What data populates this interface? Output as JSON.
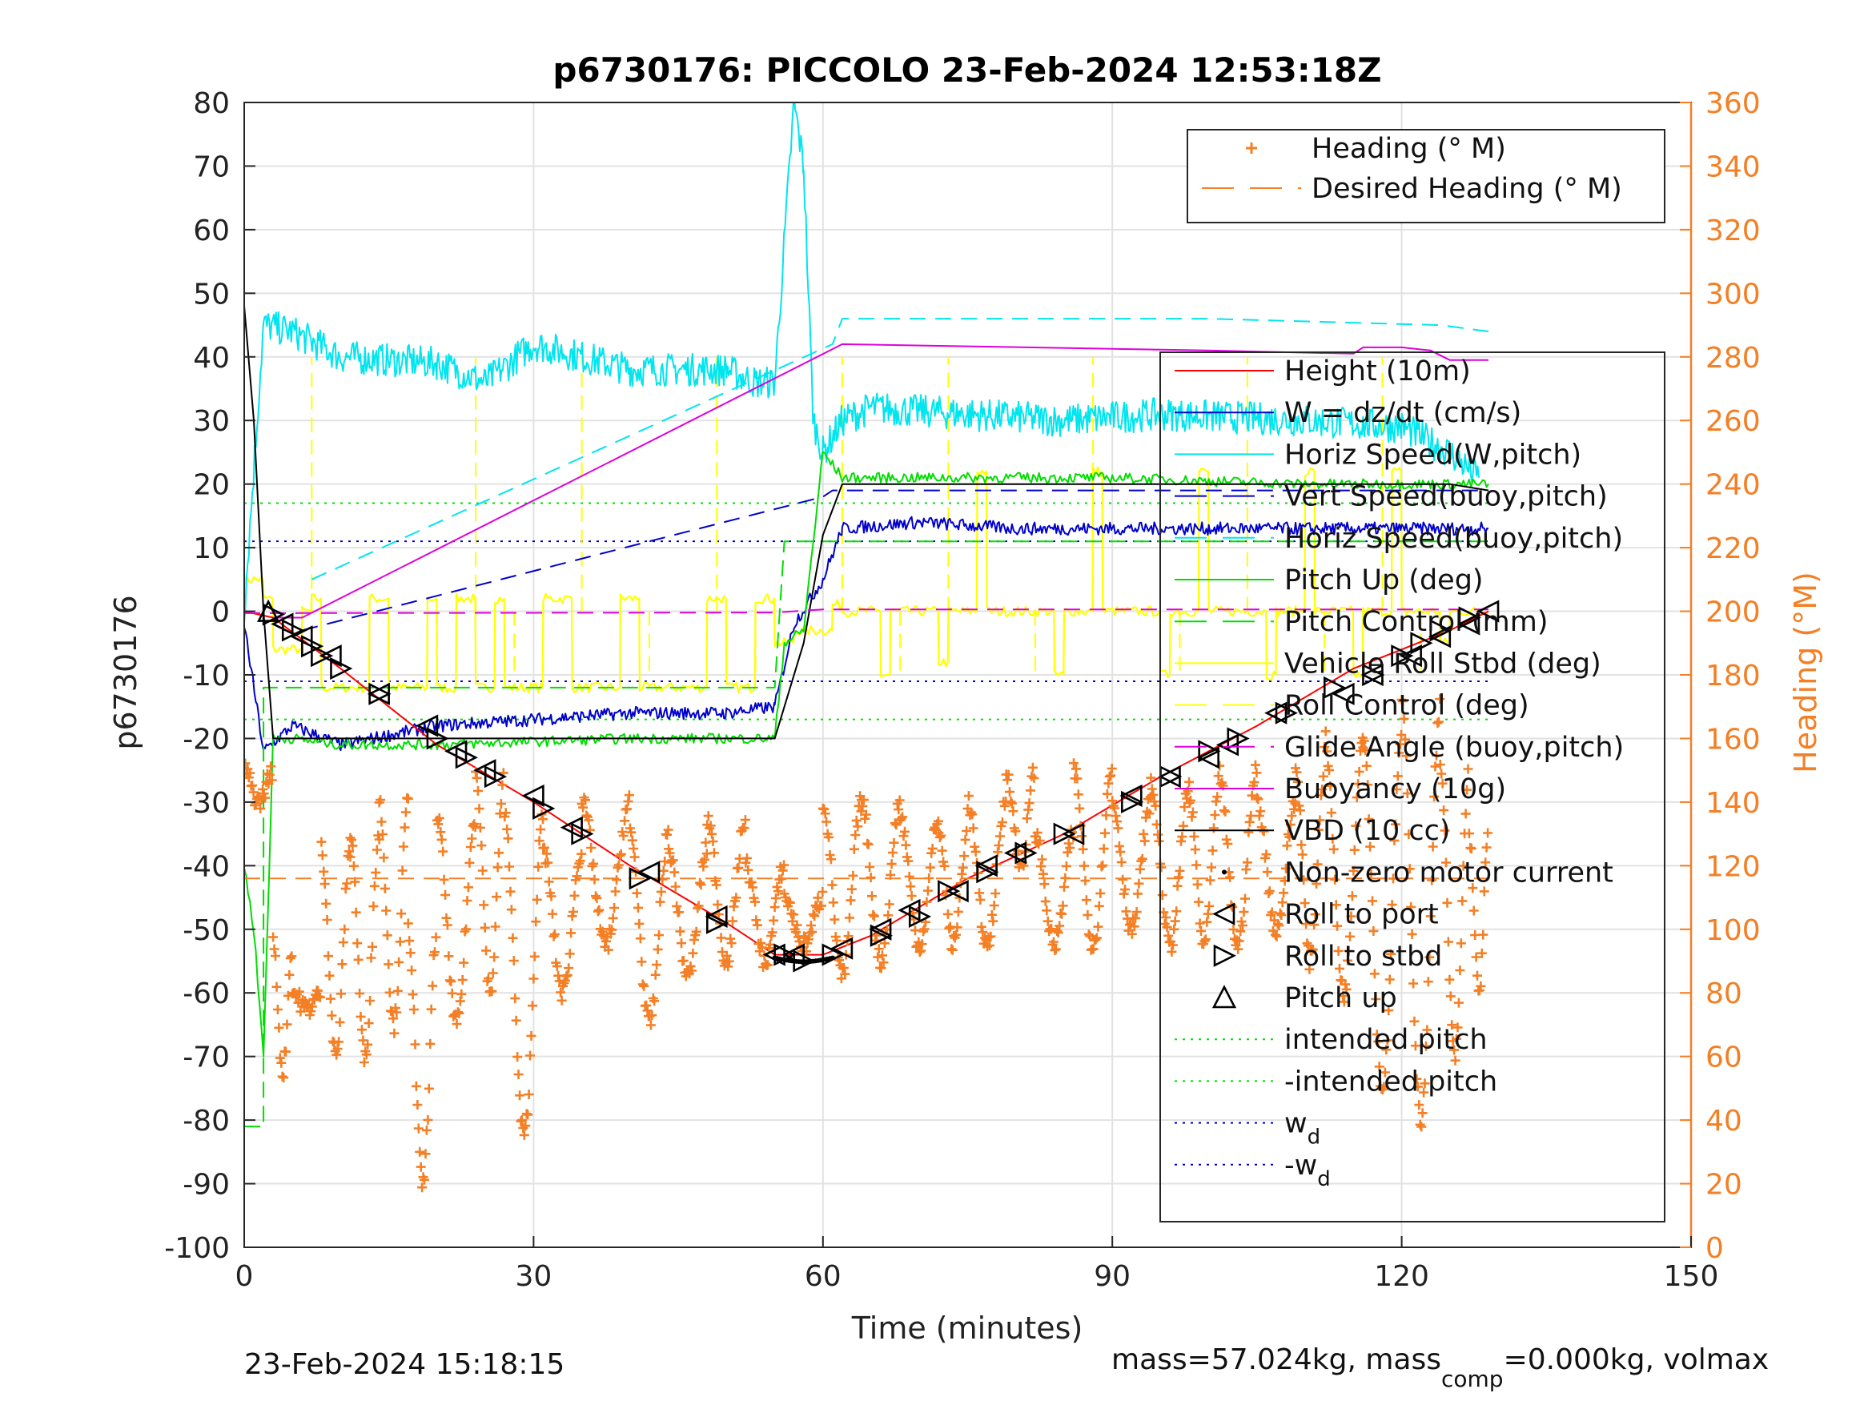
{
  "chart_data": {
    "type": "line",
    "title": "p6730176: PICCOLO 23-Feb-2024 12:53:18Z",
    "xlabel": "Time (minutes)",
    "ylabel": "p6730176",
    "ylabel_right": "Heading (°M)",
    "xlim": [
      0,
      150
    ],
    "ylim": [
      -100,
      80
    ],
    "ylim_right": [
      0,
      360
    ],
    "x_ticks": [
      0,
      30,
      60,
      90,
      120,
      150
    ],
    "y_ticks": [
      -100,
      -90,
      -80,
      -70,
      -60,
      -50,
      -40,
      -30,
      -20,
      -10,
      0,
      10,
      20,
      30,
      40,
      50,
      60,
      70,
      80
    ],
    "y_ticks_right": [
      0,
      20,
      40,
      60,
      80,
      100,
      120,
      140,
      160,
      180,
      200,
      220,
      240,
      260,
      280,
      300,
      320,
      340,
      360
    ],
    "grid": true,
    "legend_right_axis": {
      "placement": "top-right",
      "entries": [
        {
          "label": "Heading (° M)",
          "color": "#f47f24",
          "style": "plus"
        },
        {
          "label": "Desired Heading (° M)",
          "color": "#f47f24",
          "style": "dash"
        }
      ]
    },
    "legend_left_axis": {
      "placement": "right",
      "entries": [
        {
          "label": "Height (10m)",
          "color": "#ff0000",
          "style": "solid"
        },
        {
          "label": "W = dz/dt (cm/s)",
          "color": "#0000cc",
          "style": "solid"
        },
        {
          "label": "Horiz Speed(W,pitch)",
          "color": "#00e5ee",
          "style": "solid"
        },
        {
          "label": "Vert Speed(buoy,pitch)",
          "color": "#0000cc",
          "style": "dash"
        },
        {
          "label": "Horiz Speed(buoy,pitch)",
          "color": "#00e5ee",
          "style": "dash"
        },
        {
          "label": "Pitch Up (deg)",
          "color": "#00dd00",
          "style": "solid"
        },
        {
          "label": "Pitch Control (mm)",
          "color": "#00dd00",
          "style": "dash"
        },
        {
          "label": "Vehicle Roll Stbd (deg)",
          "color": "#ffff00",
          "style": "solid"
        },
        {
          "label": "Roll Control (deg)",
          "color": "#ffff00",
          "style": "dash"
        },
        {
          "label": "Glide Angle (buoy,pitch)",
          "color": "#dd00dd",
          "style": "dash"
        },
        {
          "label": "Buoyancy (10g)",
          "color": "#dd00dd",
          "style": "solid"
        },
        {
          "label": "VBD (10 cc)",
          "color": "#000000",
          "style": "solid"
        },
        {
          "label": "Non-zero motor current",
          "color": "#000000",
          "style": "dot"
        },
        {
          "label": "Roll to port",
          "color": "#000000",
          "style": "tri-left"
        },
        {
          "label": "Roll to stbd",
          "color": "#000000",
          "style": "tri-right"
        },
        {
          "label": "Pitch up",
          "color": "#000000",
          "style": "tri-up"
        },
        {
          "label": "intended pitch",
          "color": "#00dd00",
          "style": "dotted"
        },
        {
          "label": "-intended pitch",
          "color": "#00dd00",
          "style": "dotted"
        },
        {
          "label": "w",
          "sub": "d",
          "color": "#0000cc",
          "style": "dotted"
        },
        {
          "label": "-w",
          "sub": "d",
          "color": "#0000cc",
          "style": "dotted"
        }
      ]
    },
    "series": [
      {
        "name": "Height (10m)",
        "color": "#ff0000",
        "x": [
          0,
          3,
          10,
          20,
          30,
          40,
          50,
          55,
          60,
          65,
          75,
          85,
          95,
          105,
          115,
          125,
          129
        ],
        "y": [
          0,
          -1,
          -9,
          -21,
          -30,
          -40,
          -49,
          -54,
          -54,
          -51,
          -42,
          -35,
          -26,
          -18,
          -9,
          -3,
          0
        ]
      },
      {
        "name": "Desired Heading (° M)",
        "color": "#f47f24",
        "axis": "right",
        "x": [
          0,
          129
        ],
        "y": [
          116,
          116
        ]
      },
      {
        "name": "Buoyancy (10g)",
        "color": "#dd00dd",
        "x": [
          3,
          6,
          62,
          100,
          115,
          116,
          120,
          123,
          125,
          129
        ],
        "y": [
          -1,
          -1,
          42,
          41,
          40.5,
          41.5,
          41.5,
          41,
          39.5,
          39.5
        ]
      },
      {
        "name": "Horiz Speed(buoy,pitch)",
        "color": "#00e5ee",
        "x": [
          7,
          61,
          62,
          100,
          124,
          129
        ],
        "y": [
          5,
          42,
          46,
          46,
          45,
          44
        ]
      },
      {
        "name": "Vert Speed(buoy,pitch)",
        "color": "#0000cc",
        "x": [
          6,
          60,
          61,
          100,
          124,
          129
        ],
        "y": [
          -3,
          18,
          19,
          19,
          19,
          19
        ]
      },
      {
        "name": "VBD (10 cc)",
        "color": "#000000",
        "x": [
          0,
          1,
          2,
          3,
          5,
          10,
          50,
          55,
          58,
          60,
          62,
          100,
          125,
          129
        ],
        "y": [
          48,
          30,
          0,
          -20,
          -20,
          -20,
          -20,
          -20,
          -5,
          12,
          20,
          20,
          20,
          19
        ]
      },
      {
        "name": "Glide Angle (buoy,pitch)",
        "color": "#dd00dd",
        "x": [
          0,
          55,
          60,
          129
        ],
        "y": [
          -0.3,
          -0.2,
          0.3,
          0.3
        ]
      }
    ],
    "markers": {
      "roll_to_stbd": {
        "x": [
          3,
          5,
          7,
          8,
          10,
          14,
          20,
          23,
          26,
          31,
          35,
          41,
          49,
          56,
          58,
          61,
          66,
          70,
          73,
          77,
          81,
          85,
          92,
          96,
          100,
          103,
          108,
          113,
          117,
          120,
          122,
          124,
          127
        ],
        "y": [
          -0.5,
          -3,
          -5.5,
          -7,
          -9,
          -13,
          -20,
          -23,
          -26,
          -31,
          -35,
          -42,
          -49,
          -54,
          -55,
          -54,
          -51,
          -48,
          -44,
          -41,
          -38,
          -35,
          -30,
          -26,
          -22,
          -20,
          -16,
          -12,
          -10,
          -7,
          -5,
          -3,
          -1
        ]
      },
      "roll_to_port": {
        "x": [
          4,
          6,
          9,
          14,
          19,
          22,
          25,
          30,
          34,
          42,
          49,
          55,
          57,
          62,
          66,
          69,
          74,
          77,
          80,
          86,
          92,
          96,
          100,
          102,
          107,
          114,
          117,
          121,
          124,
          127,
          129
        ],
        "y": [
          -2,
          -4,
          -7,
          -13,
          -18,
          -22,
          -25,
          -29,
          -34,
          -41,
          -48,
          -54,
          -54,
          -53,
          -50,
          -47,
          -44,
          -40,
          -38,
          -35,
          -29,
          -26,
          -23,
          -21,
          -16,
          -13,
          -10,
          -7,
          -4,
          -2,
          0
        ]
      },
      "pitch_up": {
        "x": [
          2.5
        ],
        "y": [
          0
        ]
      }
    },
    "reference_lines": [
      {
        "name": "intended pitch",
        "color": "#00dd00",
        "y": 17
      },
      {
        "name": "-intended pitch",
        "color": "#00dd00",
        "y": -17
      },
      {
        "name": "wd",
        "color": "#0000cc",
        "y": 11
      },
      {
        "name": "-wd",
        "color": "#0000cc",
        "y": -11
      }
    ],
    "footer_left": "23-Feb-2024 15:18:15",
    "footer_right": "mass=57.024kg, mass",
    "footer_right_sub": "comp",
    "footer_right_tail": "=0.000kg, volmax"
  }
}
